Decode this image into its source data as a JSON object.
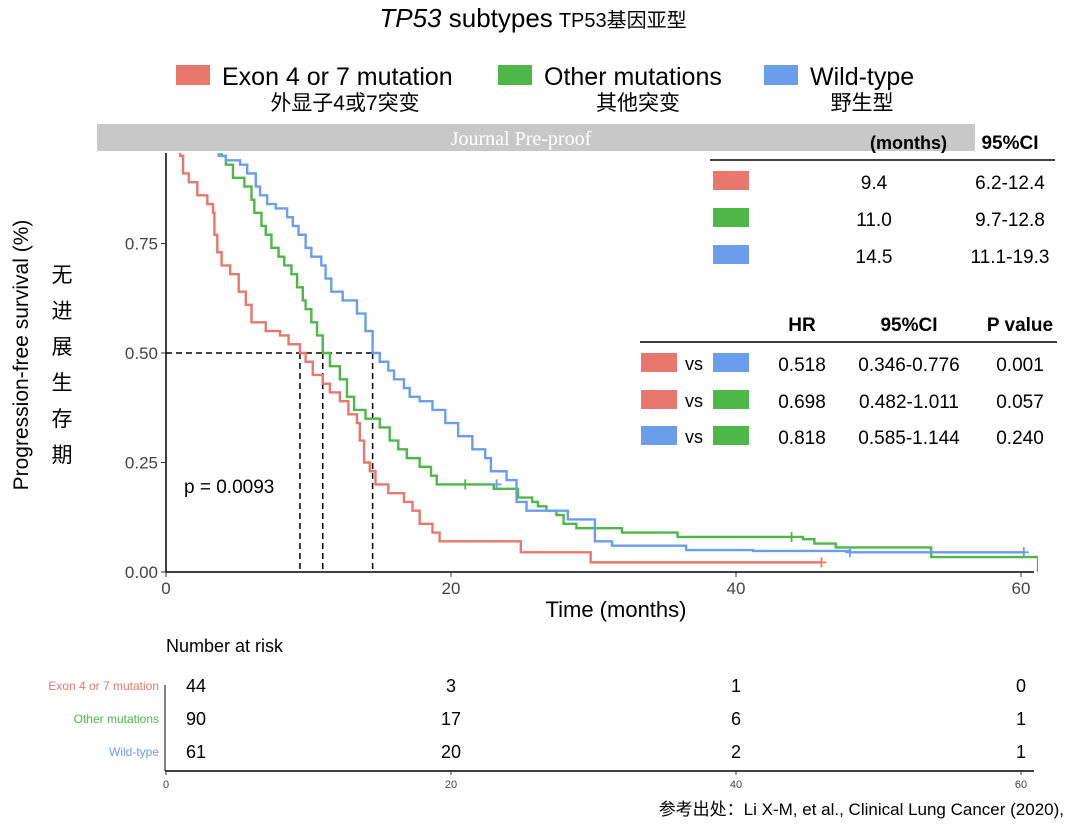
{
  "title": {
    "italic": "TP53",
    "rest": " subtypes",
    "cn": "TP53基因亚型"
  },
  "colors": {
    "exon": "#E8776E",
    "other": "#4DB848",
    "wild": "#6A9EEA"
  },
  "legend": [
    {
      "label": "Exon 4 or 7 mutation",
      "cn": "外显子4或7突变",
      "color": "#E8776E"
    },
    {
      "label": "Other mutations",
      "cn": "其他突变",
      "color": "#4DB848"
    },
    {
      "label": "Wild-type",
      "cn": "野生型",
      "color": "#6A9EEA"
    }
  ],
  "watermark": "Journal Pre-proof",
  "median_table": {
    "header_partial": "(months)",
    "header_ci": "95%CI",
    "rows": [
      {
        "color": "#E8776E",
        "median": "9.4",
        "ci": "6.2-12.4"
      },
      {
        "color": "#4DB848",
        "median": "11.0",
        "ci": "9.7-12.8"
      },
      {
        "color": "#6A9EEA",
        "median": "14.5",
        "ci": "11.1-19.3"
      }
    ]
  },
  "hr_table": {
    "headers": {
      "hr": "HR",
      "ci": "95%CI",
      "p": "P value"
    },
    "vs": "vs",
    "rows": [
      {
        "a": "#E8776E",
        "b": "#6A9EEA",
        "hr": "0.518",
        "ci": "0.346-0.776",
        "p": "0.001"
      },
      {
        "a": "#E8776E",
        "b": "#4DB848",
        "hr": "0.698",
        "ci": "0.482-1.011",
        "p": "0.057"
      },
      {
        "a": "#6A9EEA",
        "b": "#4DB848",
        "hr": "0.818",
        "ci": "0.585-1.144",
        "p": "0.240"
      }
    ]
  },
  "y_label_cn": [
    "无",
    "进",
    "展",
    "生",
    "存",
    "期"
  ],
  "risk_table": {
    "title": "Number at risk",
    "groups": [
      {
        "label": "Exon 4 or 7 mutation",
        "color": "#E8776E",
        "counts": [
          "44",
          "3",
          "1",
          "0"
        ]
      },
      {
        "label": "Other mutations",
        "color": "#4DB848",
        "counts": [
          "90",
          "17",
          "6",
          "1"
        ]
      },
      {
        "label": "Wild-type",
        "color": "#6A9EEA",
        "counts": [
          "61",
          "20",
          "2",
          "1"
        ]
      }
    ],
    "x_ticks": [
      "0",
      "20",
      "40",
      "60"
    ]
  },
  "source": "参考出处：Li X-M, et al., Clinical Lung Cancer (2020),",
  "chart_data": {
    "type": "line",
    "title": "TP53 subtypes",
    "xlabel": "Time (months)",
    "ylabel": "Progression-free survival (%)",
    "xlim": [
      0,
      61.5
    ],
    "ylim": [
      0,
      1.0
    ],
    "x_ticks": [
      0,
      20,
      40,
      60
    ],
    "y_ticks": [
      0,
      0.25,
      0.5,
      0.75
    ],
    "y_tick_labels": [
      "0.00",
      "0.25",
      "0.50",
      "0.75"
    ],
    "x_tick_labels": [
      "0",
      "20",
      "40",
      "60"
    ],
    "p_value_text": "p = 0.0093",
    "median_lines": [
      9.4,
      11.0,
      14.5
    ],
    "median_level": 0.5,
    "series": [
      {
        "name": "Exon 4 or 7 mutation",
        "color": "#E8776E",
        "steps": [
          [
            0,
            1.0
          ],
          [
            0.8,
            0.98
          ],
          [
            1.0,
            0.95
          ],
          [
            1.2,
            0.91
          ],
          [
            1.6,
            0.89
          ],
          [
            2.2,
            0.86
          ],
          [
            2.9,
            0.84
          ],
          [
            3.3,
            0.82
          ],
          [
            3.4,
            0.77
          ],
          [
            3.6,
            0.73
          ],
          [
            3.9,
            0.7
          ],
          [
            4.5,
            0.68
          ],
          [
            5.1,
            0.64
          ],
          [
            5.6,
            0.61
          ],
          [
            6.0,
            0.57
          ],
          [
            7.0,
            0.55
          ],
          [
            8.0,
            0.54
          ],
          [
            8.6,
            0.52
          ],
          [
            9.4,
            0.5
          ],
          [
            9.8,
            0.48
          ],
          [
            10.3,
            0.45
          ],
          [
            11.0,
            0.43
          ],
          [
            11.5,
            0.41
          ],
          [
            12.2,
            0.39
          ],
          [
            12.8,
            0.36
          ],
          [
            13.4,
            0.34
          ],
          [
            13.6,
            0.3
          ],
          [
            13.9,
            0.25
          ],
          [
            14.3,
            0.23
          ],
          [
            14.7,
            0.2
          ],
          [
            15.6,
            0.18
          ],
          [
            16.7,
            0.16
          ],
          [
            17.3,
            0.14
          ],
          [
            17.8,
            0.11
          ],
          [
            18.7,
            0.09
          ],
          [
            19.2,
            0.07
          ],
          [
            21.7,
            0.07
          ],
          [
            24.9,
            0.045
          ],
          [
            29.8,
            0.022
          ],
          [
            46.0,
            0.022
          ]
        ],
        "censored": [
          [
            46.0,
            0.022
          ]
        ]
      },
      {
        "name": "Other mutations",
        "color": "#4DB848",
        "steps": [
          [
            0,
            1.0
          ],
          [
            2.8,
            0.98
          ],
          [
            3.2,
            0.97
          ],
          [
            3.9,
            0.95
          ],
          [
            4.2,
            0.93
          ],
          [
            4.7,
            0.9
          ],
          [
            5.5,
            0.88
          ],
          [
            6.0,
            0.85
          ],
          [
            6.2,
            0.82
          ],
          [
            6.7,
            0.79
          ],
          [
            7.0,
            0.77
          ],
          [
            7.4,
            0.74
          ],
          [
            7.9,
            0.72
          ],
          [
            8.3,
            0.7
          ],
          [
            8.8,
            0.68
          ],
          [
            9.2,
            0.65
          ],
          [
            9.6,
            0.62
          ],
          [
            9.8,
            0.6
          ],
          [
            10.2,
            0.57
          ],
          [
            10.6,
            0.54
          ],
          [
            11.0,
            0.5
          ],
          [
            11.5,
            0.47
          ],
          [
            12.2,
            0.44
          ],
          [
            12.7,
            0.4
          ],
          [
            13.2,
            0.37
          ],
          [
            14.0,
            0.35
          ],
          [
            15.0,
            0.33
          ],
          [
            15.7,
            0.3
          ],
          [
            16.3,
            0.28
          ],
          [
            16.9,
            0.26
          ],
          [
            17.8,
            0.24
          ],
          [
            18.6,
            0.22
          ],
          [
            19.0,
            0.2
          ],
          [
            22.3,
            0.2
          ],
          [
            23.0,
            0.19
          ],
          [
            24.7,
            0.17
          ],
          [
            25.7,
            0.16
          ],
          [
            26.1,
            0.15
          ],
          [
            26.7,
            0.14
          ],
          [
            27.4,
            0.13
          ],
          [
            27.9,
            0.11
          ],
          [
            28.8,
            0.1
          ],
          [
            32.0,
            0.09
          ],
          [
            35.9,
            0.08
          ],
          [
            40.0,
            0.08
          ],
          [
            44.7,
            0.075
          ],
          [
            45.5,
            0.065
          ],
          [
            47.0,
            0.056
          ],
          [
            53.2,
            0.056
          ],
          [
            53.7,
            0.034
          ],
          [
            57.0,
            0.034
          ],
          [
            60.6,
            0.034
          ],
          [
            61.2,
            0.0
          ]
        ],
        "censored": [
          [
            21.0,
            0.2
          ],
          [
            43.9,
            0.08
          ]
        ]
      },
      {
        "name": "Wild-type",
        "color": "#6A9EEA",
        "steps": [
          [
            0,
            1.0
          ],
          [
            2.9,
            0.97
          ],
          [
            3.7,
            0.95
          ],
          [
            4.2,
            0.94
          ],
          [
            5.2,
            0.93
          ],
          [
            5.7,
            0.91
          ],
          [
            6.3,
            0.88
          ],
          [
            6.6,
            0.86
          ],
          [
            7.1,
            0.84
          ],
          [
            7.7,
            0.83
          ],
          [
            8.5,
            0.81
          ],
          [
            8.9,
            0.79
          ],
          [
            9.3,
            0.77
          ],
          [
            9.8,
            0.74
          ],
          [
            10.2,
            0.72
          ],
          [
            10.9,
            0.7
          ],
          [
            11.2,
            0.67
          ],
          [
            11.6,
            0.64
          ],
          [
            12.4,
            0.62
          ],
          [
            13.4,
            0.59
          ],
          [
            14.0,
            0.55
          ],
          [
            14.5,
            0.5
          ],
          [
            15.0,
            0.48
          ],
          [
            15.6,
            0.46
          ],
          [
            16.0,
            0.44
          ],
          [
            16.7,
            0.42
          ],
          [
            17.1,
            0.4
          ],
          [
            17.8,
            0.39
          ],
          [
            18.7,
            0.37
          ],
          [
            19.6,
            0.34
          ],
          [
            20.5,
            0.31
          ],
          [
            21.5,
            0.28
          ],
          [
            22.4,
            0.26
          ],
          [
            22.8,
            0.23
          ],
          [
            23.9,
            0.21
          ],
          [
            24.6,
            0.16
          ],
          [
            25.3,
            0.14
          ],
          [
            27.5,
            0.14
          ],
          [
            28.2,
            0.12
          ],
          [
            30.1,
            0.07
          ],
          [
            31.3,
            0.06
          ],
          [
            36.5,
            0.05
          ],
          [
            40.6,
            0.05
          ],
          [
            41.2,
            0.048
          ],
          [
            48.0,
            0.045
          ],
          [
            60.2,
            0.045
          ]
        ],
        "censored": [
          [
            23.2,
            0.2
          ],
          [
            48.0,
            0.045
          ],
          [
            60.2,
            0.045
          ]
        ]
      }
    ]
  }
}
